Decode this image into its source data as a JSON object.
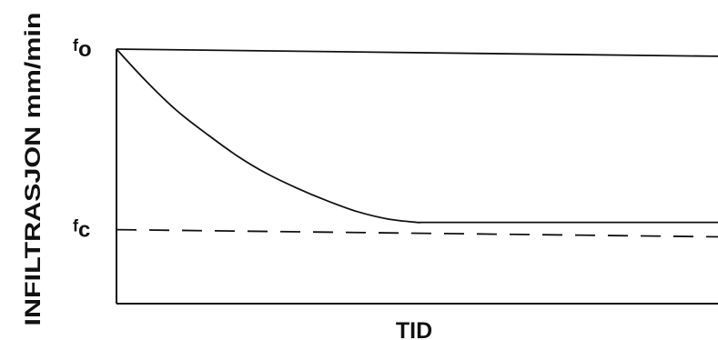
{
  "chart_data": {
    "type": "line",
    "xlabel": "TID",
    "ylabel": "INFILTRASJON mm/min",
    "y_ticks": [
      {
        "symbol": "f",
        "subscript": "o",
        "value": 1.0
      },
      {
        "symbol": "f",
        "subscript": "c",
        "value": 0.0
      }
    ],
    "ylim": [
      -0.41,
      1.0
    ],
    "xlim": [
      0,
      1
    ],
    "grid": false,
    "series": [
      {
        "style": "solid",
        "color": "#111111",
        "x": [
          0.0,
          0.05,
          0.1,
          0.15,
          0.2,
          0.25,
          0.3,
          0.35,
          0.4,
          0.45,
          0.5,
          0.51,
          0.6,
          0.7,
          0.8,
          0.9,
          1.0
        ],
        "y": [
          1.0,
          0.82,
          0.66,
          0.53,
          0.41,
          0.31,
          0.23,
          0.16,
          0.1,
          0.06,
          0.04,
          0.04,
          0.04,
          0.04,
          0.04,
          0.04,
          0.04
        ]
      },
      {
        "style": "dashed",
        "color": "#111111",
        "x": [
          0.0,
          1.0
        ],
        "y": [
          0.0,
          -0.04
        ]
      },
      {
        "style": "solid",
        "color": "#111111",
        "x": [
          0.0,
          1.0
        ],
        "y": [
          1.0,
          0.96
        ]
      }
    ]
  }
}
